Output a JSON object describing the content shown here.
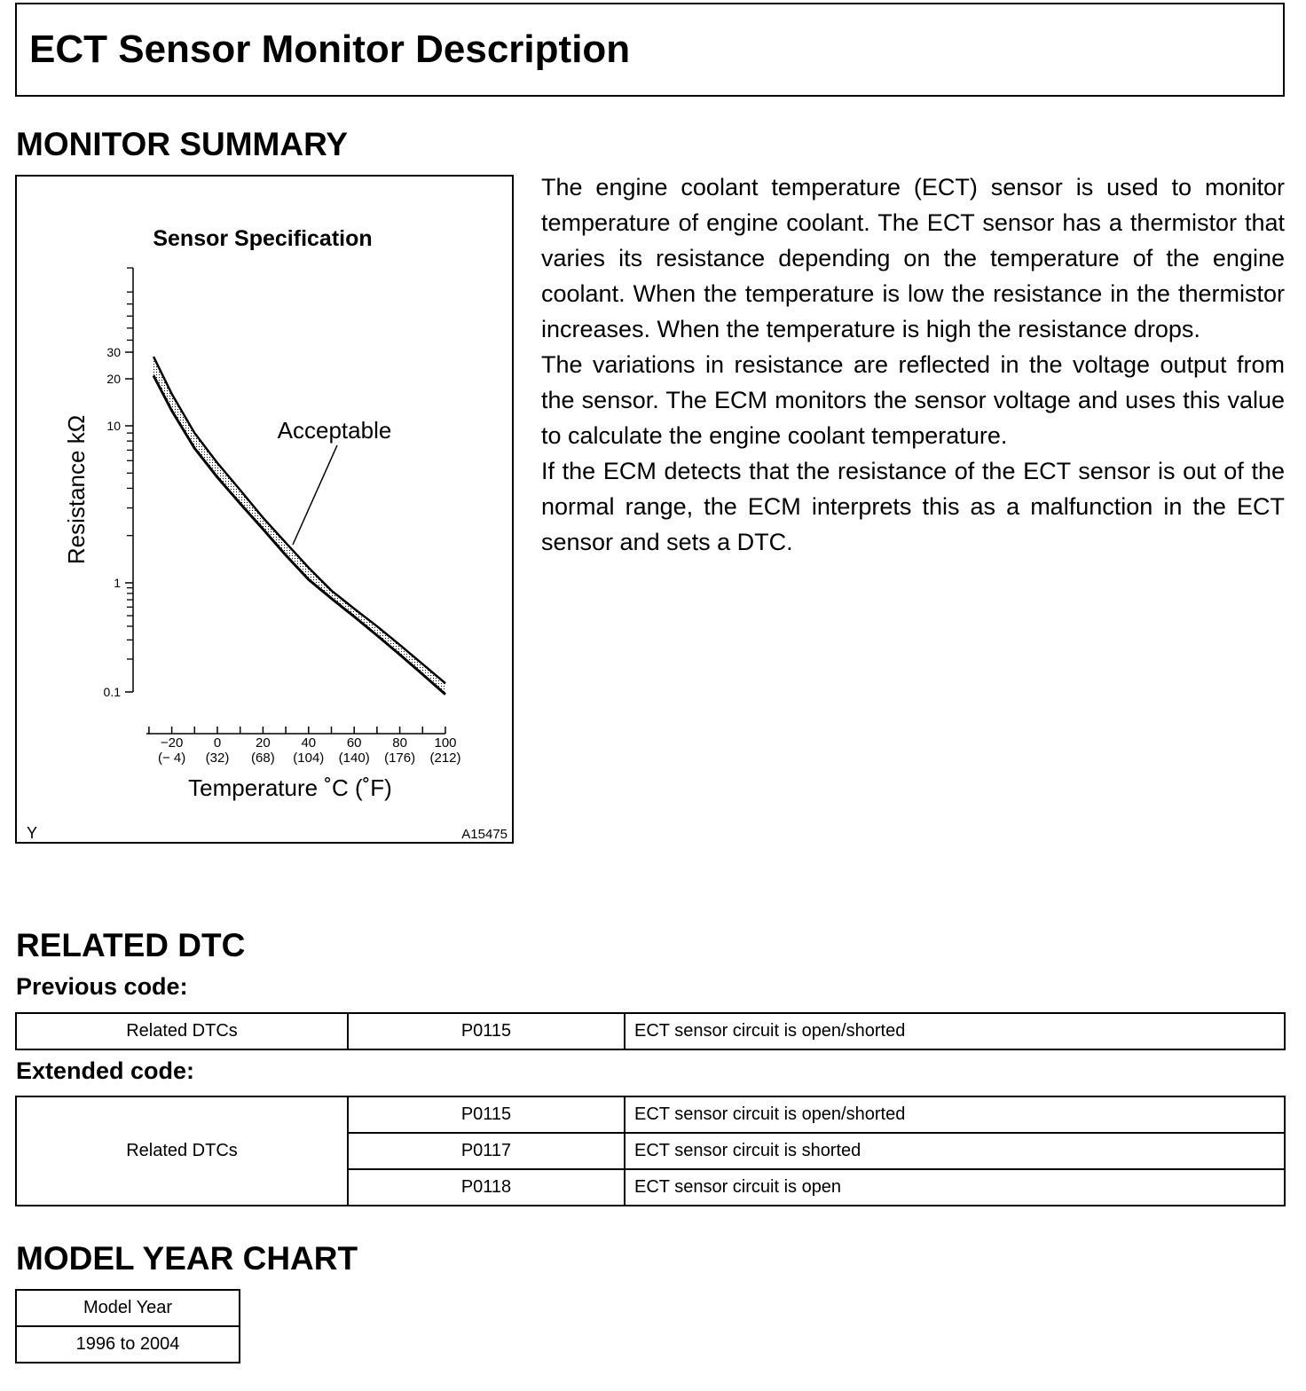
{
  "title": "ECT Sensor Monitor Description",
  "monitor_summary": {
    "heading": "MONITOR SUMMARY",
    "paragraphs": [
      "The engine coolant temperature (ECT) sensor is used to monitor temperature of engine coolant. The ECT sensor has a thermistor that varies its resistance depending on the temperature of the engine coolant. When the temperature is low the resistance in the thermistor increases. When the temperature is high the resistance drops.",
      "The variations in resistance are reflected in the voltage output from the sensor. The ECM monitors the sensor voltage and uses this value to calculate the engine coolant temperature.",
      "If the ECM detects that the resistance of the ECT sensor is out of the normal range, the ECM interprets this as a malfunction in the ECT sensor and sets a DTC."
    ]
  },
  "chart_data": {
    "type": "area",
    "title": "Sensor Specification",
    "xlabel": "Temperature ˚C (˚F)",
    "ylabel": "Resistance kΩ",
    "yscale": "log",
    "y_ticks": [
      "0.1",
      "1",
      "10",
      "20",
      "30"
    ],
    "x_ticks": [
      {
        "c": "−20",
        "f": "(− 4)",
        "v": -20
      },
      {
        "c": "0",
        "f": "(32)",
        "v": 0
      },
      {
        "c": "20",
        "f": "(68)",
        "v": 20
      },
      {
        "c": "40",
        "f": "(104)",
        "v": 40
      },
      {
        "c": "60",
        "f": "(140)",
        "v": 60
      },
      {
        "c": "80",
        "f": "(176)",
        "v": 80
      },
      {
        "c": "100",
        "f": "(212)",
        "v": 100
      }
    ],
    "annotation": "Acceptable",
    "band": {
      "x": [
        -28,
        -20,
        -10,
        0,
        10,
        20,
        30,
        40,
        50,
        60,
        70,
        80,
        90,
        100
      ],
      "upper": [
        28,
        16,
        9,
        5.8,
        3.9,
        2.6,
        1.8,
        1.25,
        0.85,
        0.58,
        0.4,
        0.27,
        0.18,
        0.12
      ],
      "lower": [
        21,
        12.5,
        7.2,
        4.7,
        3.2,
        2.2,
        1.5,
        1.05,
        0.72,
        0.49,
        0.33,
        0.22,
        0.145,
        0.095
      ]
    },
    "corner_left": "Y",
    "figure_id": "A15475"
  },
  "related_dtc": {
    "heading": "RELATED DTC",
    "previous_label": "Previous code:",
    "previous": {
      "label": "Related DTCs",
      "rows": [
        {
          "code": "P0115",
          "desc": "ECT sensor circuit is open/shorted"
        }
      ]
    },
    "extended_label": "Extended code:",
    "extended": {
      "label": "Related DTCs",
      "rows": [
        {
          "code": "P0115",
          "desc": "ECT sensor circuit is open/shorted"
        },
        {
          "code": "P0117",
          "desc": "ECT sensor circuit is shorted"
        },
        {
          "code": "P0118",
          "desc": "ECT sensor circuit is open"
        }
      ]
    }
  },
  "model_year": {
    "heading": "MODEL YEAR CHART",
    "header": "Model Year",
    "value": "1996 to 2004"
  }
}
